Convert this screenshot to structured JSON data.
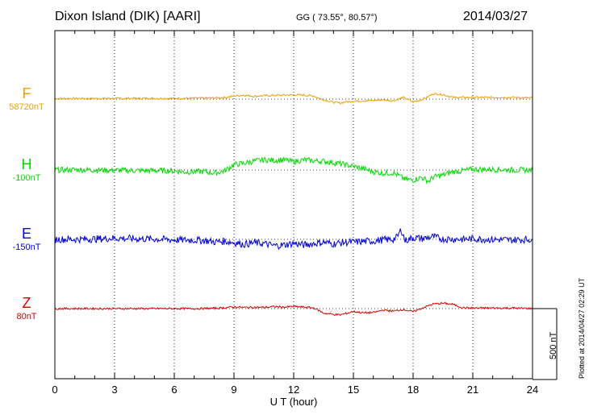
{
  "header": {
    "station": "Dixon Island (DIK)  [AARI]",
    "coords": "GG ( 73.55°,  80.57°)",
    "date": "2014/03/27"
  },
  "components": [
    {
      "letter": "F",
      "baseline": "58720nT",
      "color": "#f0a000"
    },
    {
      "letter": "H",
      "baseline": "-100nT",
      "color": "#00dd00"
    },
    {
      "letter": "E",
      "baseline": "-150nT",
      "color": "#0000dd"
    },
    {
      "letter": "Z",
      "baseline": "80nT",
      "color": "#dd0000"
    }
  ],
  "scale_bar_label": "500 nT",
  "plotted_note": "Plotted at 2014/04/27 02:29 UT",
  "chart_data": {
    "type": "line",
    "xlabel": "U T (hour)",
    "x_ticks": [
      "0",
      "3",
      "6",
      "9",
      "12",
      "15",
      "18",
      "21",
      "24"
    ],
    "xlim": [
      0,
      24
    ],
    "y_units": "nT",
    "y_scale_bar_nT": 500,
    "grid": true,
    "series": [
      {
        "name": "F",
        "baseline_nT": 58720,
        "x": [
          0,
          2,
          4,
          6,
          7,
          8,
          8.6,
          9,
          9.5,
          10,
          10.5,
          11,
          12,
          12.5,
          13,
          13.5,
          14,
          14.3,
          14.6,
          15,
          15.5,
          16,
          16.5,
          17,
          17.5,
          18,
          18.3,
          18.7,
          19,
          19.5,
          20,
          20.5,
          21,
          22,
          23,
          24
        ],
        "y": [
          4,
          4,
          5,
          5,
          6,
          8,
          12,
          22,
          28,
          20,
          24,
          26,
          30,
          28,
          22,
          -5,
          -22,
          -28,
          -20,
          -15,
          -12,
          -10,
          -5,
          -12,
          12,
          -20,
          -10,
          12,
          38,
          32,
          12,
          12,
          12,
          12,
          12,
          8
        ]
      },
      {
        "name": "H",
        "baseline_nT": -100,
        "x": [
          0,
          1,
          2,
          3,
          4,
          5,
          6,
          6.5,
          7,
          7.5,
          8,
          8.5,
          9,
          9.5,
          10,
          10.5,
          11,
          11.5,
          12,
          12.5,
          13,
          13.5,
          14,
          14.5,
          15,
          15.5,
          16,
          16.5,
          17,
          17.3,
          17.6,
          18,
          18.4,
          18.8,
          19,
          19.5,
          20,
          20.5,
          21,
          22,
          23,
          24
        ],
        "y": [
          0,
          2,
          0,
          -2,
          -4,
          -4,
          -6,
          -14,
          -12,
          -10,
          -22,
          -8,
          38,
          48,
          62,
          72,
          68,
          72,
          58,
          72,
          65,
          62,
          52,
          40,
          26,
          10,
          -12,
          -22,
          -20,
          -42,
          -65,
          -72,
          -52,
          -80,
          -50,
          -36,
          -12,
          -5,
          5,
          5,
          0,
          0
        ]
      },
      {
        "name": "E",
        "baseline_nT": -150,
        "x": [
          0,
          1,
          2,
          3,
          4,
          5,
          6,
          7,
          7.5,
          8,
          8.5,
          9,
          9.5,
          10,
          10.5,
          11,
          11.5,
          12,
          12.5,
          13,
          13.5,
          14,
          14.5,
          15,
          15.5,
          16,
          16.5,
          17,
          17.2,
          17.4,
          17.6,
          18,
          18.5,
          19,
          19.5,
          20,
          20.5,
          21,
          22,
          23,
          24
        ],
        "y": [
          0,
          0,
          2,
          8,
          4,
          2,
          -4,
          -6,
          -8,
          -18,
          -14,
          -22,
          -35,
          -25,
          -30,
          -45,
          -40,
          -28,
          -40,
          -30,
          -20,
          -32,
          -22,
          -20,
          -15,
          -12,
          -4,
          0,
          15,
          70,
          -10,
          12,
          5,
          18,
          2,
          2,
          0,
          4,
          -2,
          -4,
          0
        ]
      },
      {
        "name": "Z",
        "baseline_nT": 80,
        "x": [
          0,
          2,
          4,
          6,
          7,
          8,
          8.5,
          9,
          9.5,
          10,
          10.5,
          11,
          11.5,
          12,
          12.5,
          13,
          13.2,
          13.5,
          14,
          14.3,
          14.7,
          15,
          15.5,
          16,
          16.5,
          17,
          17.5,
          18,
          18.5,
          19,
          19.5,
          20,
          20.5,
          21,
          22,
          23,
          24
        ],
        "y": [
          0,
          0,
          0,
          0,
          0,
          2,
          6,
          12,
          8,
          10,
          8,
          14,
          10,
          15,
          10,
          5,
          -8,
          -32,
          -40,
          -45,
          -32,
          -20,
          -30,
          -28,
          -10,
          -18,
          -6,
          -22,
          6,
          32,
          38,
          30,
          6,
          4,
          4,
          4,
          0
        ]
      }
    ]
  }
}
